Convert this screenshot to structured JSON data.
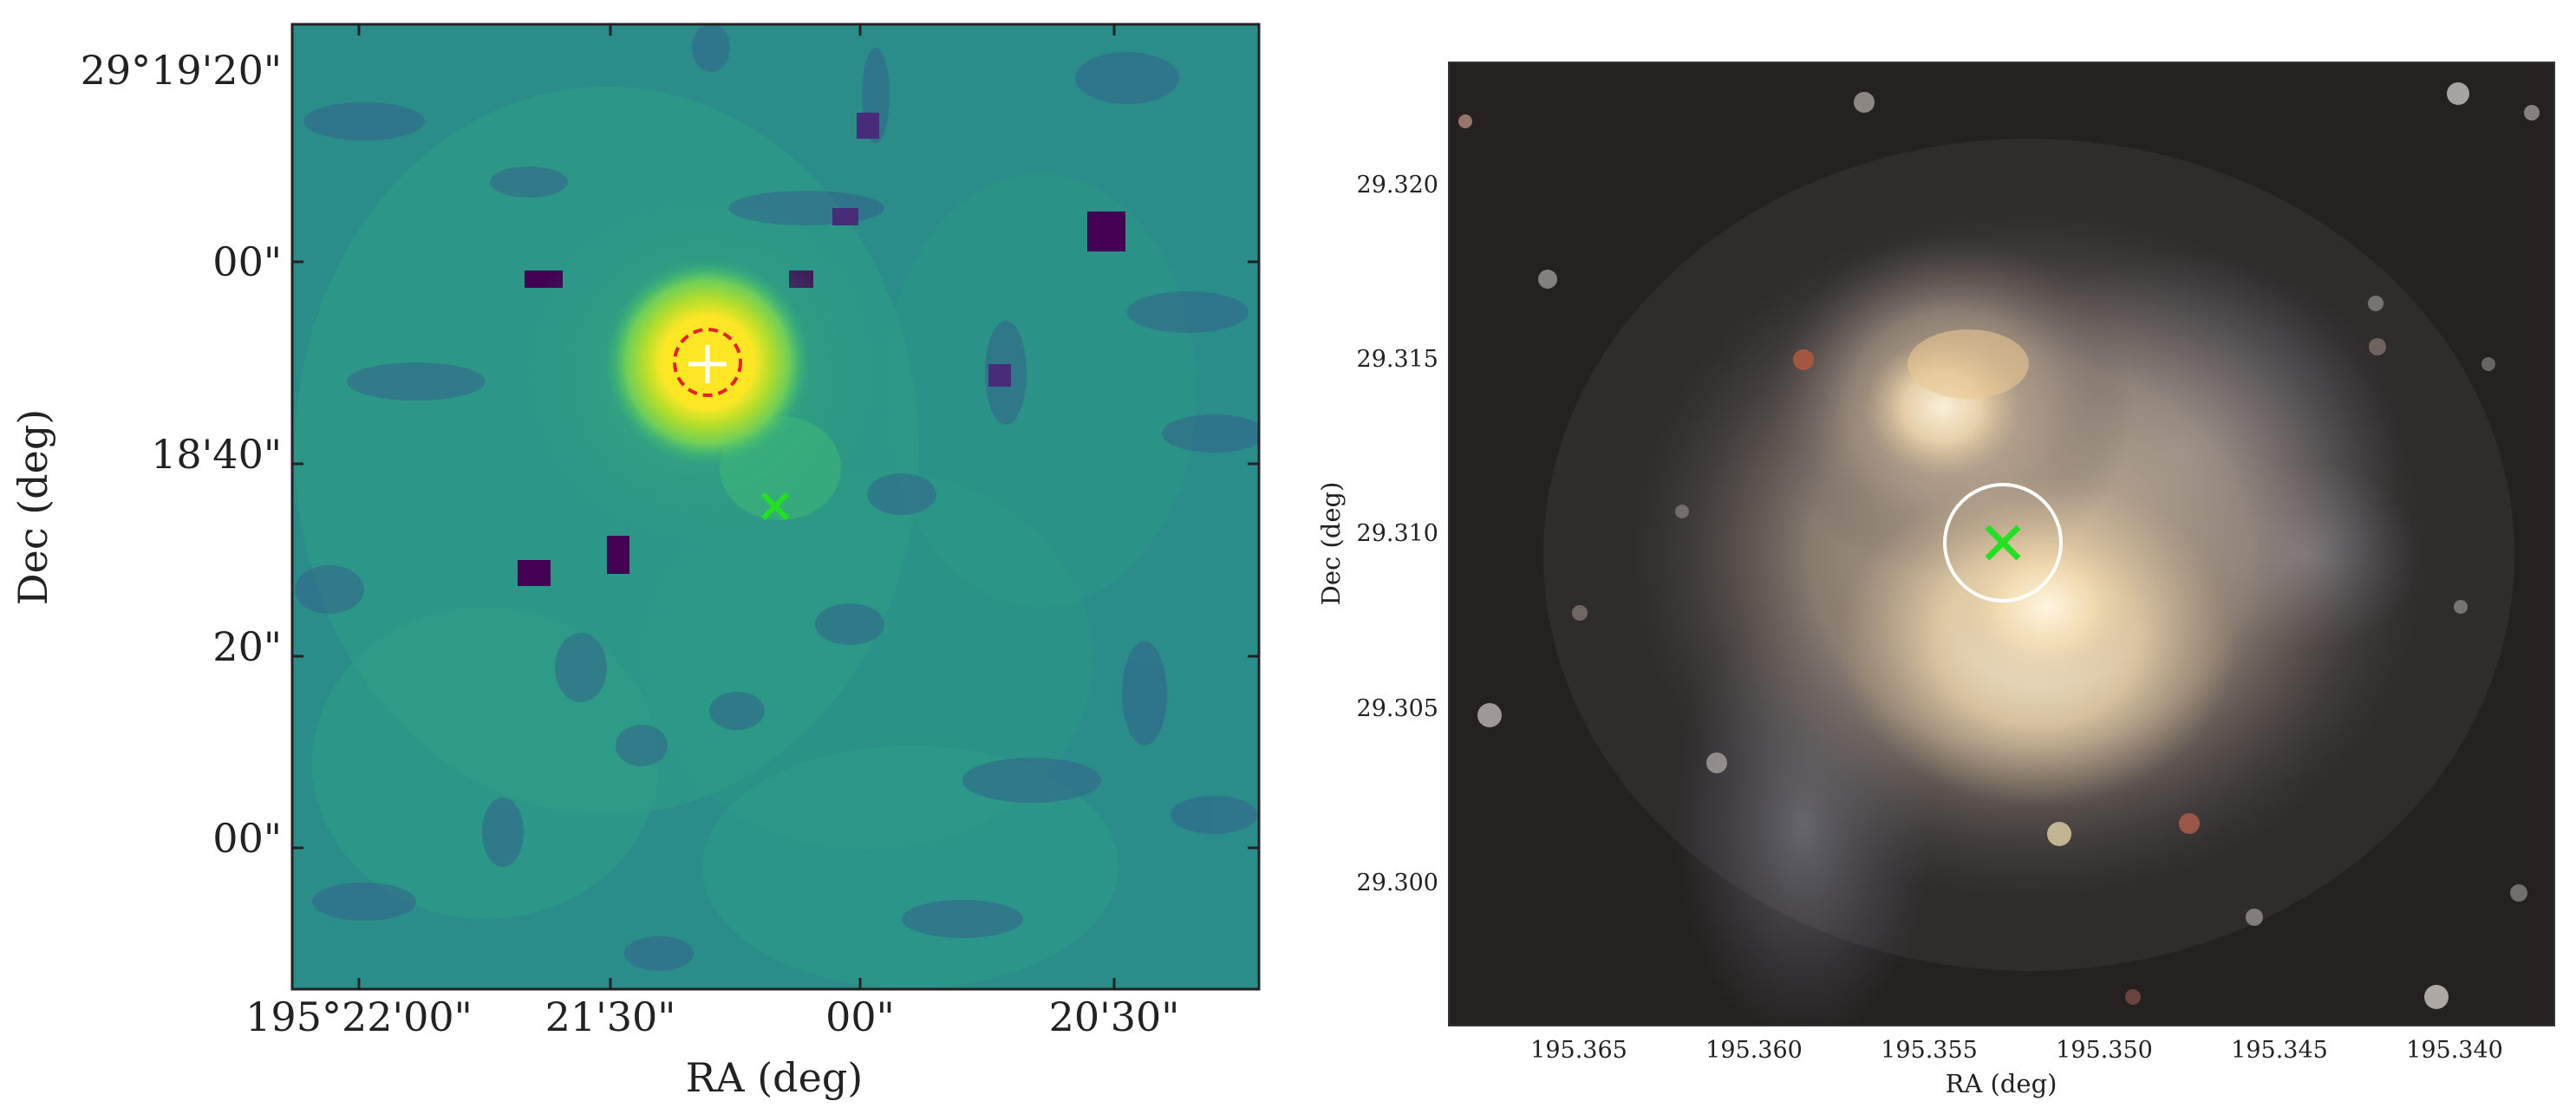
{
  "left_panel": {
    "xlabel": "RA (deg)",
    "ylabel": "Dec (deg)",
    "xticks": [
      "195°22'00\"",
      "21'30\"",
      "00\"",
      "20'30\""
    ],
    "yticks": [
      "29°19'20\"",
      "00\"",
      "18'40\"",
      "20\"",
      "00\""
    ],
    "colormap": "viridis",
    "markers": {
      "circle_color": "#e8202a",
      "plus_color": "#ffffff",
      "cross_color": "#22e022"
    }
  },
  "right_panel": {
    "xlabel": "RA (deg)",
    "ylabel": "Dec (deg)",
    "xticks": [
      "195.365",
      "195.360",
      "195.355",
      "195.350",
      "195.345",
      "195.340"
    ],
    "yticks": [
      "29.320",
      "29.315",
      "29.310",
      "29.305",
      "29.300"
    ],
    "markers": {
      "circle_color": "#ffffff",
      "cross_color": "#22e022"
    }
  }
}
